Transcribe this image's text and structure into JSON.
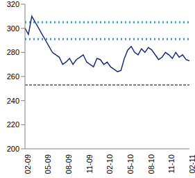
{
  "chart_data": {
    "type": "line",
    "categories": [
      "02-09",
      null,
      null,
      null,
      null,
      null,
      "05-09",
      null,
      null,
      null,
      null,
      null,
      "08-09",
      null,
      null,
      null,
      null,
      null,
      "11-09",
      null,
      null,
      null,
      null,
      null,
      "02-10",
      null,
      null,
      null,
      null,
      null,
      "05-10",
      null,
      null,
      null,
      null,
      null,
      "08-10",
      null,
      null,
      null,
      null,
      null,
      "11-10",
      null,
      null,
      null,
      null,
      null,
      "02-11"
    ],
    "values": [
      300,
      295,
      310,
      305,
      300,
      295,
      290,
      285,
      280,
      278,
      276,
      270,
      272,
      275,
      270,
      274,
      276,
      278,
      272,
      270,
      268,
      275,
      274,
      270,
      272,
      268,
      266,
      264,
      265,
      275,
      282,
      285,
      280,
      278,
      283,
      280,
      284,
      282,
      278,
      274,
      276,
      280,
      278,
      275,
      280,
      276,
      278,
      274,
      273
    ],
    "color": "#1f2a7a",
    "ylim": [
      200,
      320
    ],
    "yticks": [
      200,
      220,
      240,
      260,
      280,
      300,
      320
    ],
    "grid": false,
    "reference_lines": [
      {
        "value": 305,
        "color": "#2a9fd6",
        "line_style": "dotted"
      },
      {
        "value": 291,
        "color": "#2a9fd6",
        "line_style": "dotted"
      },
      {
        "value": 253,
        "color": "#000000",
        "line_style": "dashed"
      }
    ]
  }
}
